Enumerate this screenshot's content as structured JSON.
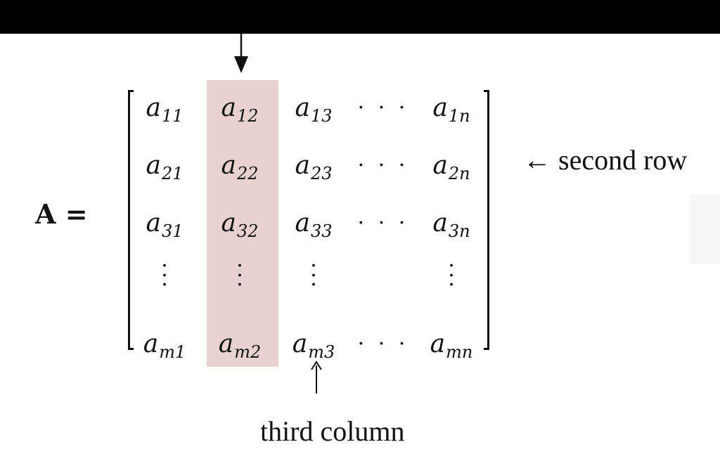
{
  "diagram": {
    "matrix_label": "A =",
    "cell_variable": "a",
    "rows": [
      [
        "11",
        "12",
        "13",
        "…",
        "1n"
      ],
      [
        "21",
        "22",
        "23",
        "…",
        "2n"
      ],
      [
        "31",
        "32",
        "33",
        "…",
        "3n"
      ],
      [
        "⋮",
        "⋮",
        "⋮",
        "",
        "⋮"
      ],
      [
        "m1",
        "m2",
        "m3",
        "…",
        "mn"
      ]
    ],
    "annotations": {
      "second_row": "← second row",
      "third_column": "third column"
    },
    "colors": {
      "highlight_column": "#e8d2d0",
      "top_bar": "#000000",
      "ink": "#111111"
    }
  }
}
